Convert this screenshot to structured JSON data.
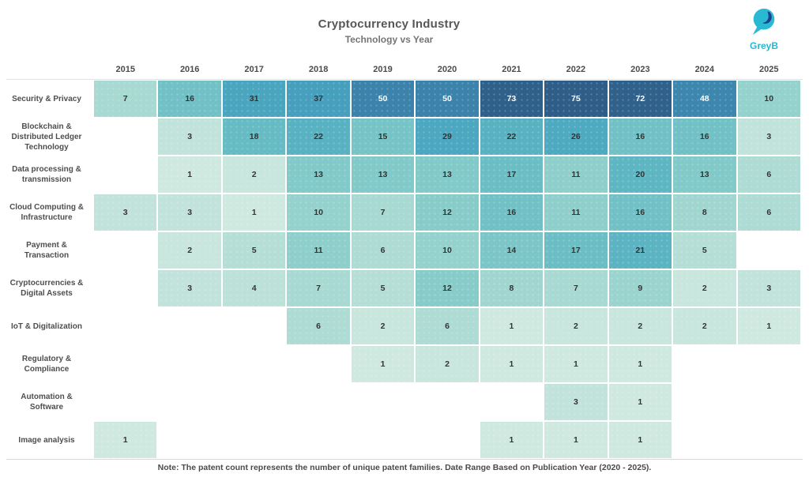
{
  "header": {
    "title": "Cryptocurrency Industry",
    "subtitle": "Technology vs Year",
    "logo_text": "GreyB",
    "logo_accent_color": "#29b9d2",
    "logo_dark_color": "#20418f"
  },
  "chart_data": {
    "type": "heatmap",
    "title": "Cryptocurrency Industry",
    "subtitle": "Technology vs Year",
    "x": [
      "2015",
      "2016",
      "2017",
      "2018",
      "2019",
      "2020",
      "2021",
      "2022",
      "2023",
      "2024",
      "2025"
    ],
    "rows": [
      {
        "label": "Security & Privacy",
        "values": [
          7,
          16,
          31,
          37,
          50,
          50,
          73,
          75,
          72,
          48,
          10
        ]
      },
      {
        "label": "Blockchain & Distributed Ledger Technology",
        "values": [
          null,
          3,
          18,
          22,
          15,
          29,
          22,
          26,
          16,
          16,
          3
        ]
      },
      {
        "label": "Data processing & transmission",
        "values": [
          null,
          1,
          2,
          13,
          13,
          13,
          17,
          11,
          20,
          13,
          6
        ]
      },
      {
        "label": "Cloud Computing & Infrastructure",
        "values": [
          3,
          3,
          1,
          10,
          7,
          12,
          16,
          11,
          16,
          8,
          6
        ]
      },
      {
        "label": "Payment & Transaction",
        "values": [
          null,
          2,
          5,
          11,
          6,
          10,
          14,
          17,
          21,
          5,
          null
        ]
      },
      {
        "label": "Cryptocurrencies & Digital Assets",
        "values": [
          null,
          3,
          4,
          7,
          5,
          12,
          8,
          7,
          9,
          2,
          3
        ]
      },
      {
        "label": "IoT & Digitalization",
        "values": [
          null,
          null,
          null,
          6,
          2,
          6,
          1,
          2,
          2,
          2,
          1
        ]
      },
      {
        "label": "Regulatory & Compliance",
        "values": [
          null,
          null,
          null,
          null,
          1,
          2,
          1,
          1,
          1,
          null,
          null
        ]
      },
      {
        "label": "Automation & Software",
        "values": [
          null,
          null,
          null,
          null,
          null,
          null,
          null,
          3,
          1,
          null,
          null
        ]
      },
      {
        "label": "Image analysis",
        "values": [
          1,
          null,
          null,
          null,
          null,
          null,
          1,
          1,
          1,
          null,
          null
        ]
      }
    ],
    "value_range": [
      1,
      75
    ],
    "grid": false,
    "legend_position": "none",
    "color_scale": {
      "stops": [
        {
          "value": 1,
          "color": "#cfe9e0"
        },
        {
          "value": 6,
          "color": "#aedbd3"
        },
        {
          "value": 12,
          "color": "#88ccca"
        },
        {
          "value": 18,
          "color": "#66bbc4"
        },
        {
          "value": 25,
          "color": "#4fabc1"
        },
        {
          "value": 37,
          "color": "#459fbd"
        },
        {
          "value": 50,
          "color": "#3c83ab"
        },
        {
          "value": 60,
          "color": "#336b96"
        },
        {
          "value": 75,
          "color": "#2e5e87"
        }
      ],
      "white_text_threshold": 45
    }
  },
  "footer": {
    "note": "Note: The patent count represents the number of unique patent families. Date Range Based on Publication Year (2020 - 2025)."
  }
}
